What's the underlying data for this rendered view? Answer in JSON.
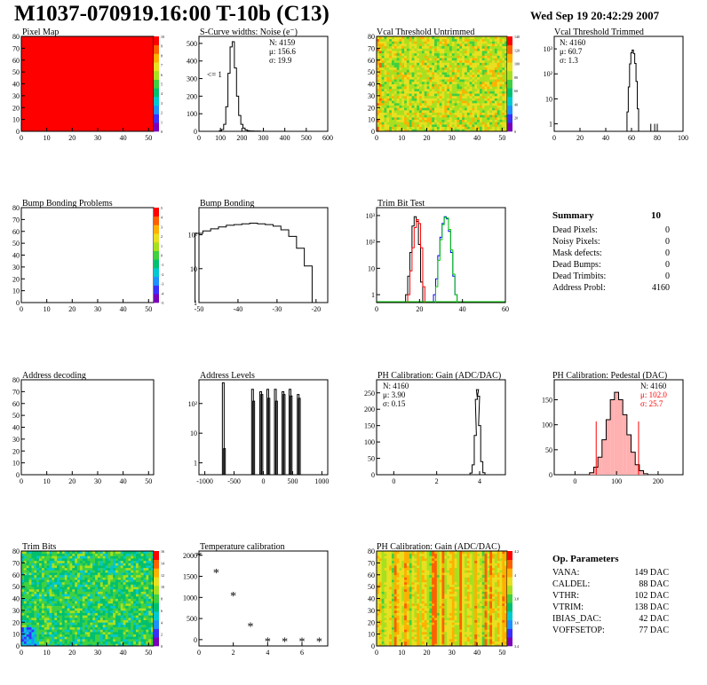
{
  "header": {
    "title": "M1037-070919.16:00 T-10b (C13)",
    "date": "Wed Sep 19 20:42:29 2007"
  },
  "colors": {
    "palette": [
      "#7a00b8",
      "#3b2fff",
      "#1e90ff",
      "#00c8d0",
      "#00c070",
      "#40d040",
      "#a8e020",
      "#e8e020",
      "#ffb000",
      "#ff6000",
      "#ff0000"
    ],
    "red": "#ff0000",
    "green": "#00cc00",
    "blue": "#0000ff",
    "axis": "#000000"
  },
  "panels": {
    "pixel_map": {
      "title": "Pixel Map",
      "x_ticks": [
        "0",
        "10",
        "20",
        "30",
        "40",
        "50"
      ],
      "y_ticks": [
        "0",
        "10",
        "20",
        "30",
        "40",
        "50",
        "60",
        "70",
        "80"
      ],
      "palette_ticks": [
        "0",
        "1",
        "2",
        "3",
        "4",
        "5",
        "6",
        "7",
        "8",
        "9",
        "10"
      ]
    },
    "noise": {
      "title": "S-Curve widths: Noise (e⁻)",
      "x_ticks": [
        "0",
        "100",
        "200",
        "300",
        "400",
        "500",
        "600"
      ],
      "y_ticks": [
        "0",
        "100",
        "200",
        "300",
        "400",
        "500"
      ],
      "stats": [
        "N: 4159",
        "μ: 156.6",
        "σ: 19.9"
      ],
      "annotation": "<= 1"
    },
    "vcal_untrimmed": {
      "title": "Vcal Threshold Untrimmed",
      "x_ticks": [
        "0",
        "10",
        "20",
        "30",
        "40",
        "50"
      ],
      "y_ticks": [
        "0",
        "10",
        "20",
        "30",
        "40",
        "50",
        "60",
        "70",
        "80"
      ],
      "palette_ticks": [
        "0",
        "20",
        "40",
        "60",
        "80",
        "100",
        "120",
        "140"
      ]
    },
    "vcal_trimmed": {
      "title": "Vcal Threshold Trimmed",
      "x_ticks": [
        "0",
        "20",
        "40",
        "60",
        "80",
        "100"
      ],
      "y_ticks": [
        "1",
        "10",
        "10²",
        "10³"
      ],
      "stats": [
        "N: 4160",
        "μ: 60.7",
        "σ:  1.3"
      ]
    },
    "bump_problems": {
      "title": "Bump Bonding Problems",
      "x_ticks": [
        "0",
        "10",
        "20",
        "30",
        "40",
        "50"
      ],
      "y_ticks": [
        "0",
        "10",
        "20",
        "30",
        "40",
        "50",
        "60",
        "70",
        "80"
      ],
      "palette_ticks": [
        "-5",
        "-4",
        "-3",
        "-2",
        "-1",
        "0",
        "1",
        "2",
        "3",
        "4",
        "5"
      ]
    },
    "bump_bonding": {
      "title": "Bump Bonding",
      "x_ticks": [
        "-50",
        "-40",
        "-30",
        "-20"
      ],
      "y_ticks": [
        "1",
        "10",
        "10²"
      ]
    },
    "trim_bit_test": {
      "title": "Trim Bit Test",
      "x_ticks": [
        "0",
        "20",
        "40",
        "60"
      ],
      "y_ticks": [
        "1",
        "10",
        "10²",
        "10³"
      ]
    },
    "summary": {
      "title": "Summary",
      "title_value": "10",
      "rows": [
        {
          "label": "Dead Pixels:",
          "value": "0"
        },
        {
          "label": "Noisy Pixels:",
          "value": "0"
        },
        {
          "label": "Mask defects:",
          "value": "0"
        },
        {
          "label": "Dead Bumps:",
          "value": "0"
        },
        {
          "label": "Dead Trimbits:",
          "value": "0"
        },
        {
          "label": "Address Probl:",
          "value": "4160"
        }
      ]
    },
    "address_decoding": {
      "title": "Address decoding",
      "x_ticks": [
        "0",
        "10",
        "20",
        "30",
        "40",
        "50"
      ],
      "y_ticks": [
        "0",
        "10",
        "20",
        "30",
        "40",
        "50",
        "60",
        "70",
        "80"
      ]
    },
    "address_levels": {
      "title": "Address Levels",
      "x_ticks": [
        "-1000",
        "-500",
        "0",
        "500",
        "1000"
      ],
      "y_ticks": [
        "1",
        "10",
        "10²"
      ]
    },
    "ph_gain": {
      "title": "PH Calibration: Gain (ADC/DAC)",
      "x_ticks": [
        "0",
        "2",
        "4"
      ],
      "y_ticks": [
        "0",
        "50",
        "100",
        "150",
        "200",
        "250"
      ],
      "stats": [
        "N: 4160",
        "μ: 3.90",
        "σ: 0.15"
      ]
    },
    "ph_pedestal": {
      "title": "PH Calibration: Pedestal (DAC)",
      "x_ticks": [
        "0",
        "100",
        "200"
      ],
      "y_ticks": [
        "0",
        "50",
        "100",
        "150"
      ],
      "stats": [
        "N: 4160",
        "μ: 102.0",
        "σ: 25.7"
      ]
    },
    "trim_bits": {
      "title": "Trim Bits",
      "x_ticks": [
        "0",
        "10",
        "20",
        "30",
        "40",
        "50"
      ],
      "y_ticks": [
        "0",
        "10",
        "20",
        "30",
        "40",
        "50",
        "60",
        "70",
        "80"
      ],
      "palette_ticks": [
        "0",
        "2",
        "4",
        "6",
        "8",
        "10",
        "12",
        "14",
        "16"
      ]
    },
    "temperature": {
      "title": "Temperature calibration",
      "x_ticks": [
        "0",
        "2",
        "4",
        "6"
      ],
      "y_ticks": [
        "0",
        "500",
        "1000",
        "1500",
        "2000"
      ]
    },
    "ph_gain_map": {
      "title": "PH Calibration: Gain (ADC/DAC)",
      "x_ticks": [
        "0",
        "10",
        "20",
        "30",
        "40",
        "50"
      ],
      "y_ticks": [
        "0",
        "10",
        "20",
        "30",
        "40",
        "50",
        "60",
        "70",
        "80"
      ],
      "palette_ticks": [
        "3.4",
        "3.6",
        "3.8",
        "4",
        "4.2"
      ]
    },
    "op_params": {
      "title": "Op. Parameters",
      "rows": [
        {
          "label": "VANA:",
          "value": "149 DAC"
        },
        {
          "label": "CALDEL:",
          "value": "88 DAC"
        },
        {
          "label": "VTHR:",
          "value": "102 DAC"
        },
        {
          "label": "VTRIM:",
          "value": "138 DAC"
        },
        {
          "label": "IBIAS_DAC:",
          "value": "42 DAC"
        },
        {
          "label": "VOFFSETOP:",
          "value": "77 DAC"
        }
      ]
    }
  },
  "chart_data": [
    {
      "type": "heatmap",
      "title": "Pixel Map",
      "x_range": [
        0,
        52
      ],
      "y_range": [
        0,
        80
      ],
      "z_range": [
        0,
        10
      ],
      "uniform_value": 10
    },
    {
      "type": "bar",
      "title": "S-Curve widths: Noise (e⁻)",
      "xlim": [
        0,
        600
      ],
      "ylim": [
        0,
        540
      ],
      "x": [
        100,
        110,
        120,
        130,
        140,
        150,
        160,
        170,
        180,
        190,
        200,
        210,
        220,
        230,
        240,
        250,
        260,
        270,
        280
      ],
      "values": [
        3,
        10,
        40,
        140,
        330,
        480,
        510,
        360,
        200,
        90,
        40,
        18,
        8,
        4,
        2,
        2,
        1,
        1,
        1
      ]
    },
    {
      "type": "heatmap",
      "title": "Vcal Threshold Untrimmed",
      "x_range": [
        0,
        52
      ],
      "y_range": [
        0,
        80
      ],
      "z_range": [
        0,
        150
      ]
    },
    {
      "type": "bar",
      "title": "Vcal Threshold Trimmed",
      "xlim": [
        0,
        100
      ],
      "log_y": true,
      "x": [
        57,
        58,
        59,
        60,
        61,
        62,
        63,
        64,
        65,
        75,
        78,
        80
      ],
      "values": [
        3,
        30,
        250,
        700,
        900,
        650,
        260,
        50,
        4,
        1,
        1,
        1
      ]
    },
    {
      "type": "heatmap",
      "title": "Bump Bonding Problems",
      "x_range": [
        0,
        52
      ],
      "y_range": [
        0,
        80
      ],
      "z_range": [
        -5,
        5
      ],
      "empty": true
    },
    {
      "type": "bar",
      "title": "Bump Bonding",
      "xlim": [
        -50,
        -17
      ],
      "log_y": true,
      "x": [
        -50,
        -48,
        -46,
        -44,
        -42,
        -40,
        -38,
        -36,
        -34,
        -32,
        -30,
        -28,
        -26,
        -24,
        -22,
        -20
      ],
      "values": [
        110,
        130,
        150,
        170,
        190,
        200,
        210,
        220,
        210,
        200,
        180,
        140,
        90,
        40,
        12,
        1
      ]
    },
    {
      "type": "line",
      "title": "Trim Bit Test",
      "xlim": [
        0,
        60
      ],
      "log_y": true,
      "series": [
        {
          "x": [
            14,
            15,
            16,
            17,
            18,
            19,
            20,
            21
          ],
          "values": [
            1,
            5,
            40,
            400,
            900,
            600,
            80,
            3
          ]
        },
        {
          "x": [
            15,
            16,
            17,
            18,
            19,
            20,
            21,
            22
          ],
          "values": [
            1,
            8,
            60,
            350,
            700,
            500,
            60,
            2
          ]
        },
        {
          "x": [
            27,
            28,
            29,
            30,
            31,
            32,
            33,
            34,
            35,
            36,
            37
          ],
          "values": [
            1,
            4,
            30,
            150,
            500,
            900,
            750,
            250,
            40,
            5,
            1
          ]
        },
        {
          "x": [
            28,
            29,
            30,
            31,
            32,
            33,
            34,
            35,
            36,
            37
          ],
          "values": [
            2,
            20,
            120,
            450,
            850,
            800,
            300,
            50,
            6,
            1
          ]
        }
      ]
    },
    {
      "type": "heatmap",
      "title": "Address decoding",
      "x_range": [
        0,
        52
      ],
      "y_range": [
        0,
        80
      ],
      "empty": true
    },
    {
      "type": "bar",
      "title": "Address Levels",
      "xlim": [
        -1100,
        1100
      ],
      "log_y": true,
      "x": [
        -700,
        -680,
        -200,
        -180,
        -60,
        -40,
        60,
        80,
        190,
        210,
        320,
        340,
        440,
        460,
        580,
        600
      ],
      "values": [
        500,
        3,
        300,
        120,
        250,
        200,
        300,
        150,
        300,
        120,
        250,
        200,
        300,
        180,
        200,
        150
      ]
    },
    {
      "type": "bar",
      "title": "PH Calibration: Gain (ADC/DAC)",
      "xlim": [
        -0.8,
        5.2
      ],
      "ylim": [
        0,
        290
      ],
      "x": [
        3.6,
        3.7,
        3.8,
        3.85,
        3.9,
        3.95,
        4.0,
        4.1,
        4.2
      ],
      "values": [
        5,
        30,
        120,
        230,
        260,
        240,
        150,
        40,
        6
      ]
    },
    {
      "type": "bar",
      "title": "PH Calibration: Pedestal (DAC)",
      "xlim": [
        -50,
        260
      ],
      "ylim": [
        0,
        190
      ],
      "x": [
        40,
        50,
        60,
        70,
        80,
        90,
        100,
        110,
        120,
        130,
        140,
        150,
        160,
        170
      ],
      "values": [
        4,
        15,
        35,
        70,
        110,
        150,
        165,
        150,
        120,
        80,
        45,
        20,
        8,
        2
      ]
    },
    {
      "type": "heatmap",
      "title": "Trim Bits",
      "x_range": [
        0,
        52
      ],
      "y_range": [
        0,
        80
      ],
      "z_range": [
        0,
        16
      ]
    },
    {
      "type": "scatter",
      "title": "Temperature calibration",
      "xlim": [
        0,
        7.5
      ],
      "ylim": [
        -150,
        2100
      ],
      "x": [
        0,
        1,
        2,
        3,
        4,
        5,
        6,
        7
      ],
      "values": [
        2000,
        1600,
        1050,
        320,
        -30,
        -30,
        -30,
        -30
      ]
    },
    {
      "type": "heatmap",
      "title": "PH Calibration: Gain (ADC/DAC)",
      "x_range": [
        0,
        52
      ],
      "y_range": [
        0,
        80
      ],
      "z_range": [
        3.3,
        4.3
      ]
    }
  ]
}
